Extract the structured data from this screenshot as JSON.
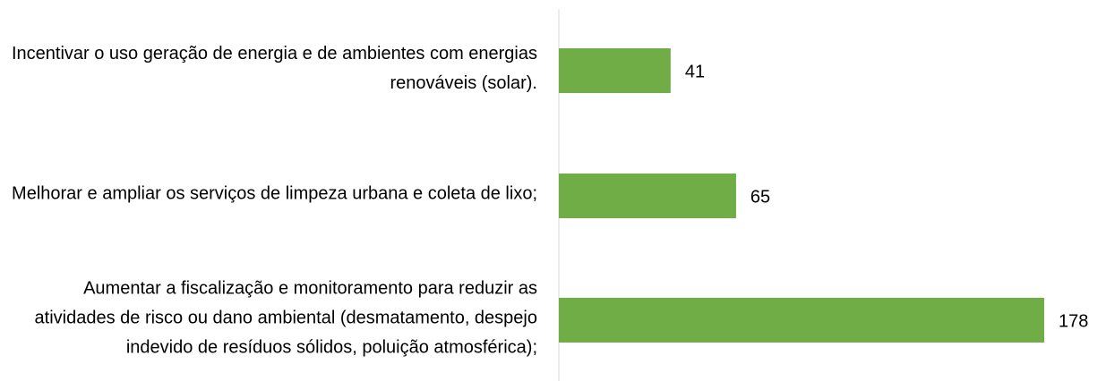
{
  "chart_data": {
    "type": "hbar",
    "categories": [
      "Incentivar o uso geração de energia e de ambientes com energias renováveis (solar).",
      "Melhorar e ampliar os serviços de limpeza urbana e coleta de lixo;",
      "Aumentar a fiscalização e monitoramento para reduzir as atividades de risco ou dano ambiental (desmatamento, despejo indevido de resíduos sólidos, poluição atmosférica);"
    ],
    "values": [
      41,
      65,
      178
    ],
    "color": "#70ad47"
  }
}
